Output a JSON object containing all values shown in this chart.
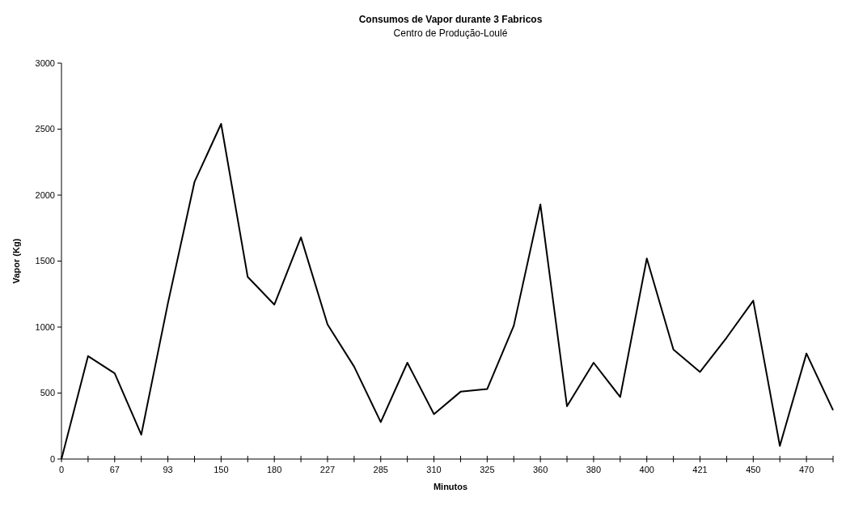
{
  "chart_data": {
    "type": "line",
    "title": "Consumos de Vapor durante 3 Fabricos",
    "subtitle": "Centro de Produção-Loulé",
    "xlabel": "Minutos",
    "ylabel": "Vapor (Kg)",
    "categories": [
      "0",
      null,
      "67",
      null,
      "93",
      null,
      "150",
      null,
      "180",
      null,
      "227",
      null,
      "285",
      null,
      "310",
      null,
      "325",
      null,
      "360",
      null,
      "380",
      null,
      "400",
      null,
      "421",
      null,
      "450",
      null,
      "470",
      null
    ],
    "series": [
      {
        "color": "#000000",
        "values": [
          0,
          780,
          650,
          185,
          1180,
          2100,
          2540,
          1380,
          1170,
          1680,
          1020,
          700,
          280,
          730,
          340,
          510,
          530,
          1010,
          1930,
          400,
          730,
          470,
          1520,
          830,
          660,
          920,
          1200,
          100,
          800,
          370
        ]
      }
    ],
    "ylim": [
      0,
      3000
    ],
    "yticks": [
      0,
      500,
      1000,
      1500,
      2000,
      2500,
      3000
    ],
    "grid": false,
    "marker": "none",
    "line_style": "solid"
  }
}
